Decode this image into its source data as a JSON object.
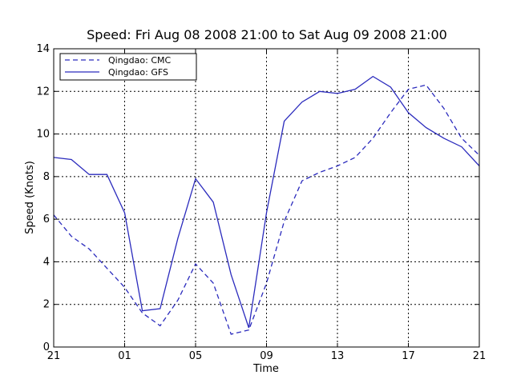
{
  "chart_data": {
    "type": "line",
    "title": "Speed: Fri Aug 08 2008 21:00 to Sat Aug 09 2008 21:00",
    "xlabel": "Time",
    "ylabel": "Speed (Knots)",
    "xlim": [
      0,
      24
    ],
    "ylim": [
      0,
      14
    ],
    "x_ticks": [
      {
        "x": 0,
        "label": "21"
      },
      {
        "x": 4,
        "label": "01"
      },
      {
        "x": 8,
        "label": "05"
      },
      {
        "x": 12,
        "label": "09"
      },
      {
        "x": 16,
        "label": "13"
      },
      {
        "x": 20,
        "label": "17"
      },
      {
        "x": 24,
        "label": "21"
      }
    ],
    "y_ticks": [
      0,
      2,
      4,
      6,
      8,
      10,
      12,
      14
    ],
    "grid": true,
    "legend_position": "top-left",
    "x": [
      0,
      1,
      2,
      3,
      4,
      5,
      6,
      7,
      8,
      9,
      10,
      11,
      12,
      13,
      14,
      15,
      16,
      17,
      18,
      19,
      20,
      21,
      22,
      23,
      24
    ],
    "series": [
      {
        "name": "Qingdao: CMC",
        "style": "dashed",
        "color": "#2b2bbd",
        "values": [
          6.2,
          5.2,
          4.6,
          3.7,
          2.8,
          1.6,
          1.0,
          2.2,
          3.9,
          3.0,
          0.6,
          0.8,
          3.0,
          5.9,
          7.8,
          8.2,
          8.5,
          8.9,
          9.8,
          11.0,
          12.1,
          12.3,
          11.2,
          9.8,
          9.0
        ]
      },
      {
        "name": "Qingdao: GFS",
        "style": "solid",
        "color": "#2b2bbd",
        "values": [
          8.9,
          8.8,
          8.1,
          8.1,
          6.3,
          1.7,
          1.8,
          5.1,
          7.9,
          6.8,
          3.4,
          0.9,
          6.3,
          10.6,
          11.5,
          12.0,
          11.9,
          12.1,
          12.7,
          12.2,
          11.0,
          10.3,
          9.8,
          9.4,
          8.5
        ]
      }
    ]
  }
}
